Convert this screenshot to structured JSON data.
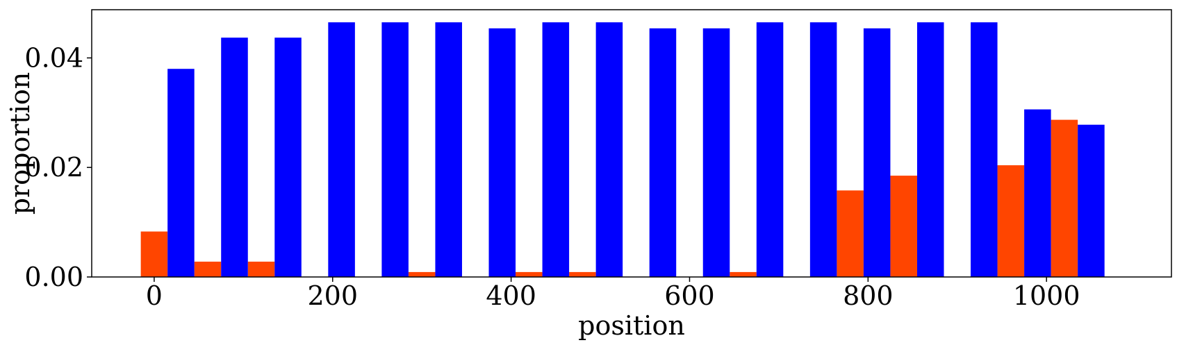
{
  "chart_data": {
    "type": "bar",
    "title": "",
    "xlabel": "position",
    "ylabel": "proportion",
    "xlim": [
      -70,
      1140
    ],
    "ylim": [
      0,
      0.0488
    ],
    "grid": false,
    "legend": "none",
    "bar_width": 30,
    "x_ticks": [
      0,
      200,
      400,
      600,
      800,
      1000
    ],
    "x_tick_labels": [
      "0",
      "200",
      "400",
      "600",
      "800",
      "1000"
    ],
    "y_ticks": [
      0.0,
      0.02,
      0.04
    ],
    "y_tick_labels": [
      "0.00",
      "0.02",
      "0.04"
    ],
    "series": [
      {
        "color": "#ff4500",
        "x": [
          0,
          60,
          120,
          180,
          240,
          300,
          360,
          420,
          480,
          540,
          600,
          660,
          720,
          780,
          840,
          900,
          960,
          1020
        ],
        "values": [
          0.0083,
          0.0028,
          0.0028,
          0.0,
          0.0,
          0.0009,
          0.0,
          0.0009,
          0.0009,
          0.0,
          0.0,
          0.0009,
          0.0,
          0.0158,
          0.0185,
          0.0,
          0.0204,
          0.0287
        ]
      },
      {
        "color": "#0000ff",
        "x": [
          30,
          90,
          150,
          210,
          270,
          330,
          390,
          450,
          510,
          570,
          630,
          690,
          750,
          810,
          870,
          930,
          990,
          1050
        ],
        "values": [
          0.038,
          0.0437,
          0.0437,
          0.0465,
          0.0465,
          0.0465,
          0.0454,
          0.0465,
          0.0465,
          0.0454,
          0.0454,
          0.0465,
          0.0465,
          0.0454,
          0.0465,
          0.0465,
          0.0306,
          0.0278
        ]
      }
    ]
  }
}
